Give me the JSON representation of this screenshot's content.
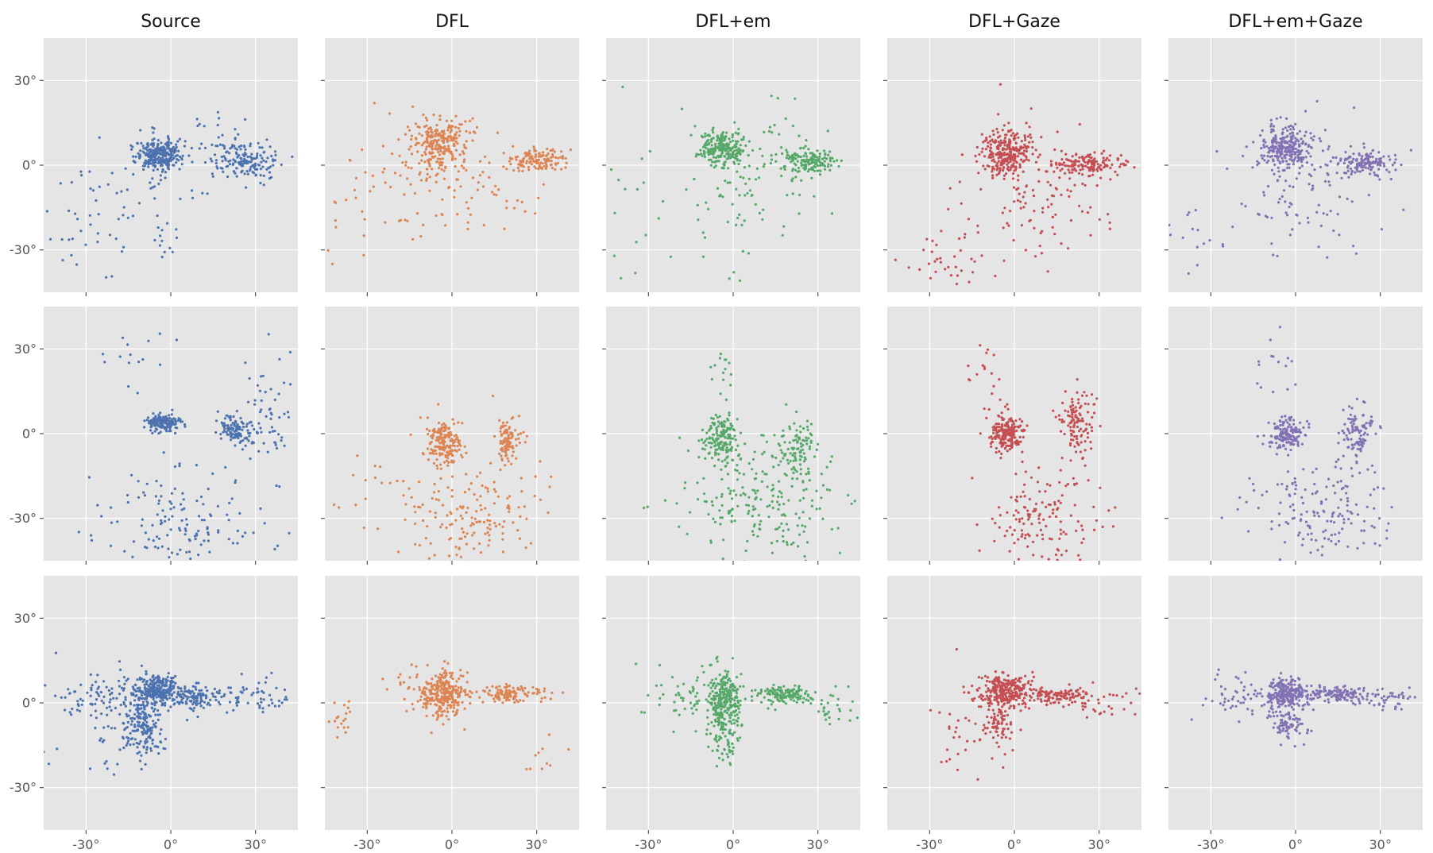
{
  "chart_data": {
    "type": "scatter",
    "title": "",
    "xlabel": "",
    "ylabel": "",
    "xlim": [
      -45,
      45
    ],
    "ylim": [
      -45,
      45
    ],
    "grid": true,
    "x_ticks": [
      -30,
      0,
      30
    ],
    "y_ticks": [
      -30,
      0,
      30
    ],
    "x_tick_labels": [
      "-30°",
      "0°",
      "30°"
    ],
    "y_tick_labels": [
      "30°",
      "0°",
      "-30°"
    ],
    "columns": [
      {
        "name": "Source",
        "color": "#4c72b0"
      },
      {
        "name": "DFL",
        "color": "#dd8452"
      },
      {
        "name": "DFL+em",
        "color": "#55a868"
      },
      {
        "name": "DFL+Gaze",
        "color": "#c44e52"
      },
      {
        "name": "DFL+em+Gaze",
        "color": "#8172b3"
      }
    ],
    "rows": [
      {
        "panels": [
          {
            "column": "Source",
            "clusters": [
              {
                "x": -4,
                "y": 4,
                "sx": 4,
                "sy": 2.5,
                "n": 260
              },
              {
                "x": 27,
                "y": 1,
                "sx": 5,
                "sy": 3,
                "n": 140
              },
              {
                "x": -3,
                "y": -2,
                "sx": 10,
                "sy": 8,
                "n": 60
              },
              {
                "x": 18,
                "y": 8,
                "sx": 8,
                "sy": 6,
                "n": 40
              },
              {
                "x": -32,
                "y": -20,
                "sx": 9,
                "sy": 12,
                "n": 35
              },
              {
                "x": -3,
                "y": -28,
                "sx": 2,
                "sy": 3,
                "n": 12
              }
            ]
          },
          {
            "column": "DFL",
            "clusters": [
              {
                "x": -4,
                "y": 8,
                "sx": 5,
                "sy": 5,
                "n": 230
              },
              {
                "x": 30,
                "y": 2,
                "sx": 5,
                "sy": 2,
                "n": 130
              },
              {
                "x": 0,
                "y": -5,
                "sx": 14,
                "sy": 12,
                "n": 110
              },
              {
                "x": -30,
                "y": -18,
                "sx": 10,
                "sy": 12,
                "n": 25
              }
            ]
          },
          {
            "column": "DFL+em",
            "clusters": [
              {
                "x": -4,
                "y": 6,
                "sx": 4,
                "sy": 3,
                "n": 220
              },
              {
                "x": 27,
                "y": 1,
                "sx": 5,
                "sy": 2.5,
                "n": 150
              },
              {
                "x": 5,
                "y": -5,
                "sx": 14,
                "sy": 14,
                "n": 110
              },
              {
                "x": -35,
                "y": -15,
                "sx": 6,
                "sy": 18,
                "n": 15
              }
            ]
          },
          {
            "column": "DFL+Gaze",
            "clusters": [
              {
                "x": -3,
                "y": 4,
                "sx": 4,
                "sy": 4,
                "n": 260
              },
              {
                "x": 27,
                "y": 0,
                "sx": 6,
                "sy": 2,
                "n": 150
              },
              {
                "x": 5,
                "y": -10,
                "sx": 14,
                "sy": 14,
                "n": 120
              },
              {
                "x": -25,
                "y": -35,
                "sx": 8,
                "sy": 5,
                "n": 30
              }
            ]
          },
          {
            "column": "DFL+em+Gaze",
            "clusters": [
              {
                "x": -3,
                "y": 6,
                "sx": 5,
                "sy": 4,
                "n": 250
              },
              {
                "x": 25,
                "y": 1,
                "sx": 5,
                "sy": 2,
                "n": 130
              },
              {
                "x": 5,
                "y": -8,
                "sx": 14,
                "sy": 12,
                "n": 110
              },
              {
                "x": -35,
                "y": -25,
                "sx": 6,
                "sy": 8,
                "n": 15
              }
            ]
          }
        ]
      },
      {
        "panels": [
          {
            "column": "Source",
            "clusters": [
              {
                "x": -3,
                "y": 4,
                "sx": 3,
                "sy": 1.5,
                "n": 160
              },
              {
                "x": 23,
                "y": 1,
                "sx": 3,
                "sy": 2.5,
                "n": 120
              },
              {
                "x": 5,
                "y": -30,
                "sx": 14,
                "sy": 10,
                "n": 140
              },
              {
                "x": 35,
                "y": 5,
                "sx": 6,
                "sy": 10,
                "n": 60
              },
              {
                "x": -12,
                "y": 28,
                "sx": 6,
                "sy": 6,
                "n": 15
              }
            ]
          },
          {
            "column": "DFL",
            "clusters": [
              {
                "x": -3,
                "y": -3,
                "sx": 3,
                "sy": 4,
                "n": 180
              },
              {
                "x": 20,
                "y": -2,
                "sx": 2,
                "sy": 4,
                "n": 100
              },
              {
                "x": 8,
                "y": -30,
                "sx": 13,
                "sy": 9,
                "n": 160
              },
              {
                "x": -30,
                "y": -20,
                "sx": 7,
                "sy": 6,
                "n": 15
              }
            ]
          },
          {
            "column": "DFL+em",
            "clusters": [
              {
                "x": -4,
                "y": -2,
                "sx": 3,
                "sy": 4,
                "n": 160
              },
              {
                "x": 22,
                "y": -5,
                "sx": 4,
                "sy": 6,
                "n": 100
              },
              {
                "x": 10,
                "y": -25,
                "sx": 14,
                "sy": 12,
                "n": 220
              },
              {
                "x": -3,
                "y": 20,
                "sx": 2,
                "sy": 5,
                "n": 15
              }
            ]
          },
          {
            "column": "DFL+Gaze",
            "clusters": [
              {
                "x": -3,
                "y": 0,
                "sx": 3,
                "sy": 3,
                "n": 200
              },
              {
                "x": 22,
                "y": 3,
                "sx": 3,
                "sy": 6,
                "n": 120
              },
              {
                "x": 10,
                "y": -30,
                "sx": 10,
                "sy": 10,
                "n": 150
              },
              {
                "x": -10,
                "y": 18,
                "sx": 4,
                "sy": 7,
                "n": 20
              }
            ]
          },
          {
            "column": "DFL+em+Gaze",
            "clusters": [
              {
                "x": -3,
                "y": 0,
                "sx": 3,
                "sy": 2.5,
                "n": 160
              },
              {
                "x": 22,
                "y": 0,
                "sx": 3,
                "sy": 5,
                "n": 100
              },
              {
                "x": 10,
                "y": -28,
                "sx": 12,
                "sy": 10,
                "n": 160
              },
              {
                "x": -5,
                "y": 20,
                "sx": 4,
                "sy": 7,
                "n": 15
              }
            ]
          }
        ]
      },
      {
        "panels": [
          {
            "column": "Source",
            "clusters": [
              {
                "x": -5,
                "y": 4,
                "sx": 4,
                "sy": 3,
                "n": 280
              },
              {
                "x": -10,
                "y": -8,
                "sx": 3,
                "sy": 5,
                "n": 140
              },
              {
                "x": 10,
                "y": 2,
                "sx": 5,
                "sy": 2,
                "n": 120
              },
              {
                "x": -25,
                "y": 3,
                "sx": 9,
                "sy": 5,
                "n": 90
              },
              {
                "x": 30,
                "y": 2,
                "sx": 6,
                "sy": 3,
                "n": 50
              },
              {
                "x": -18,
                "y": -10,
                "sx": 10,
                "sy": 8,
                "n": 50
              }
            ]
          },
          {
            "column": "DFL",
            "clusters": [
              {
                "x": -3,
                "y": 3,
                "sx": 4,
                "sy": 4,
                "n": 300
              },
              {
                "x": 20,
                "y": 3,
                "sx": 6,
                "sy": 1.5,
                "n": 120
              },
              {
                "x": -40,
                "y": -5,
                "sx": 3,
                "sy": 3,
                "n": 20
              },
              {
                "x": 33,
                "y": -20,
                "sx": 4,
                "sy": 5,
                "n": 10
              },
              {
                "x": -12,
                "y": 8,
                "sx": 6,
                "sy": 6,
                "n": 20
              }
            ]
          },
          {
            "column": "DFL+em",
            "clusters": [
              {
                "x": -3,
                "y": 0,
                "sx": 3,
                "sy": 6,
                "n": 280
              },
              {
                "x": 18,
                "y": 3,
                "sx": 5,
                "sy": 1.5,
                "n": 130
              },
              {
                "x": -15,
                "y": 2,
                "sx": 8,
                "sy": 5,
                "n": 60
              },
              {
                "x": 35,
                "y": -2,
                "sx": 4,
                "sy": 3,
                "n": 30
              },
              {
                "x": -3,
                "y": -15,
                "sx": 2,
                "sy": 4,
                "n": 40
              }
            ]
          },
          {
            "column": "DFL+Gaze",
            "clusters": [
              {
                "x": -3,
                "y": 4,
                "sx": 5,
                "sy": 3,
                "n": 280
              },
              {
                "x": -5,
                "y": -8,
                "sx": 3,
                "sy": 3,
                "n": 60
              },
              {
                "x": 15,
                "y": 3,
                "sx": 5,
                "sy": 1.5,
                "n": 100
              },
              {
                "x": 30,
                "y": 0,
                "sx": 7,
                "sy": 3,
                "n": 40
              },
              {
                "x": -15,
                "y": -10,
                "sx": 8,
                "sy": 8,
                "n": 40
              }
            ]
          },
          {
            "column": "DFL+em+Gaze",
            "clusters": [
              {
                "x": -3,
                "y": 3,
                "sx": 4,
                "sy": 3,
                "n": 260
              },
              {
                "x": -3,
                "y": -8,
                "sx": 3,
                "sy": 3,
                "n": 80
              },
              {
                "x": 15,
                "y": 3,
                "sx": 6,
                "sy": 1.5,
                "n": 120
              },
              {
                "x": 33,
                "y": 1,
                "sx": 6,
                "sy": 2,
                "n": 40
              },
              {
                "x": -20,
                "y": 3,
                "sx": 7,
                "sy": 4,
                "n": 50
              }
            ]
          }
        ]
      }
    ]
  }
}
